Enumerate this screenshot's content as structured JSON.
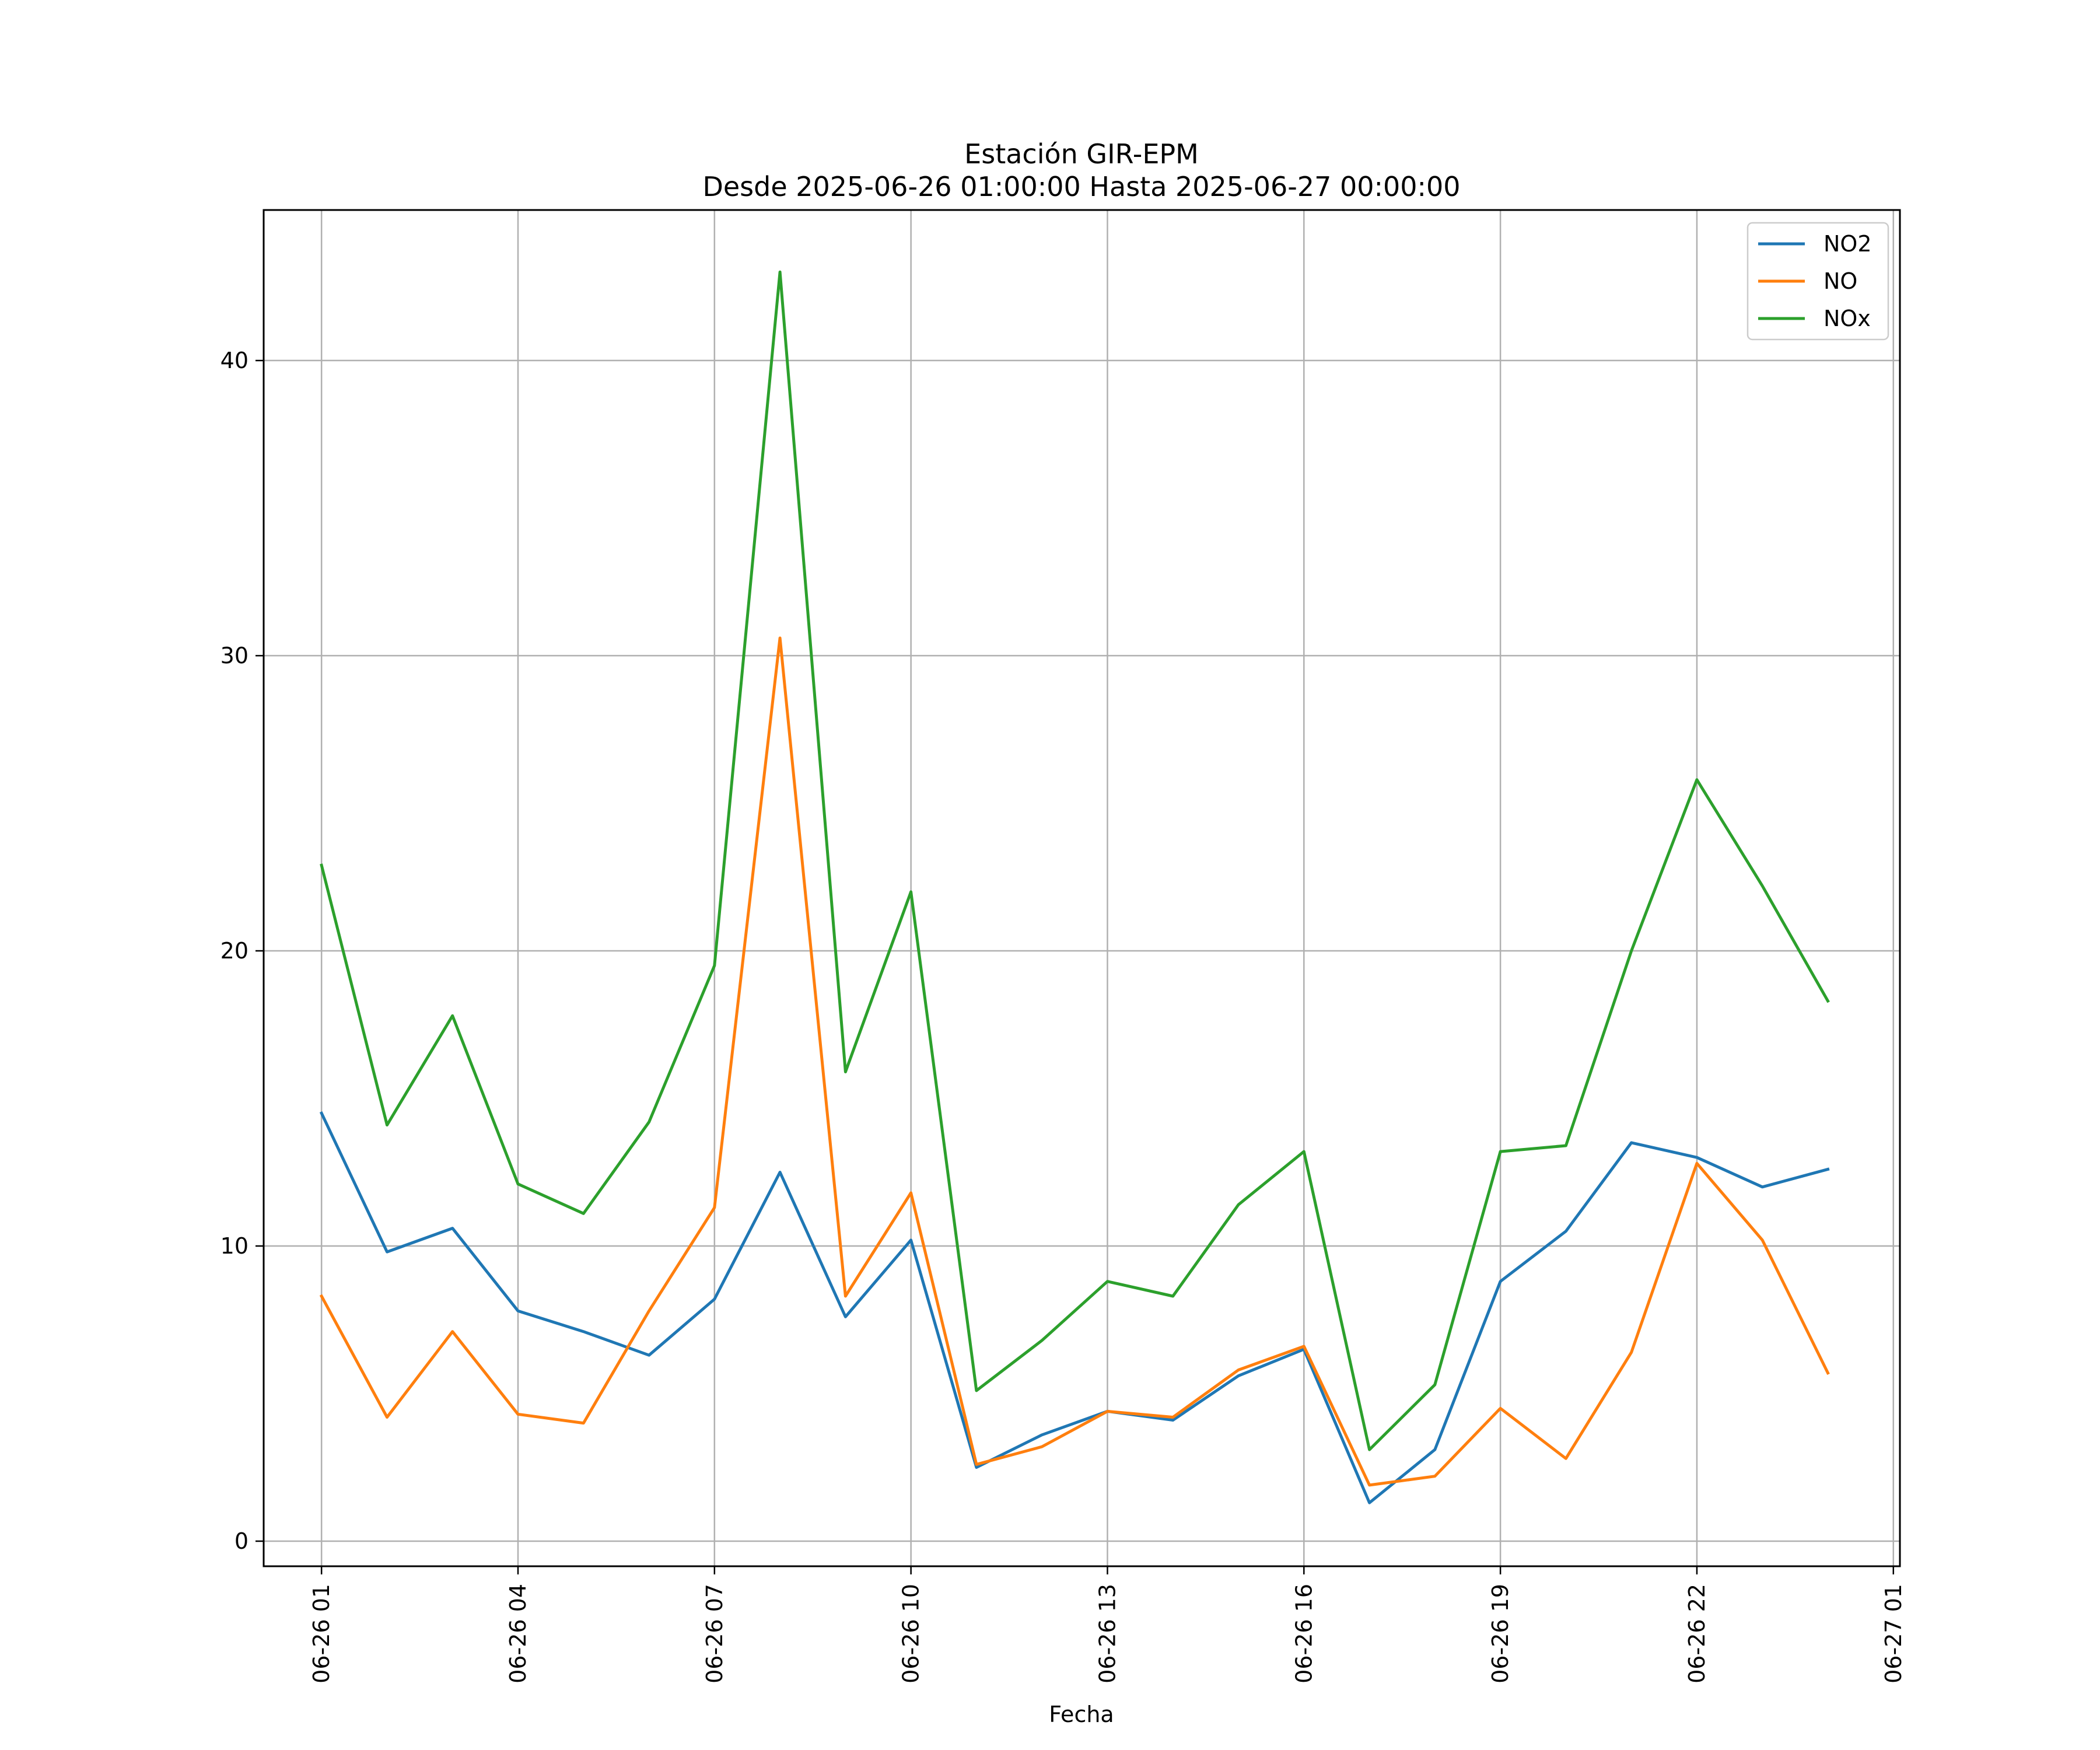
{
  "chart_data": {
    "type": "line",
    "title": "Estación GIR-EPM",
    "subtitle": "Desde 2025-06-26 01:00:00 Hasta 2025-06-27 00:00:00",
    "xlabel": "Fecha",
    "ylabel": "",
    "x": [
      "2025-06-26 01:00",
      "2025-06-26 02:00",
      "2025-06-26 03:00",
      "2025-06-26 04:00",
      "2025-06-26 05:00",
      "2025-06-26 06:00",
      "2025-06-26 07:00",
      "2025-06-26 08:00",
      "2025-06-26 09:00",
      "2025-06-26 10:00",
      "2025-06-26 11:00",
      "2025-06-26 12:00",
      "2025-06-26 13:00",
      "2025-06-26 14:00",
      "2025-06-26 15:00",
      "2025-06-26 16:00",
      "2025-06-26 17:00",
      "2025-06-26 18:00",
      "2025-06-26 19:00",
      "2025-06-26 20:00",
      "2025-06-26 21:00",
      "2025-06-26 22:00",
      "2025-06-26 23:00",
      "2025-06-27 00:00"
    ],
    "x_ticks": [
      "06-26 01",
      "06-26 04",
      "06-26 07",
      "06-26 10",
      "06-26 13",
      "06-26 16",
      "06-26 19",
      "06-26 22",
      "06-27 01"
    ],
    "x_tick_values": [
      "2025-06-26 01:00",
      "2025-06-26 04:00",
      "2025-06-26 07:00",
      "2025-06-26 10:00",
      "2025-06-26 13:00",
      "2025-06-26 16:00",
      "2025-06-26 19:00",
      "2025-06-26 22:00",
      "2025-06-27 01:00"
    ],
    "xlim": [
      "2025-06-26 00:07",
      "2025-06-27 01:06"
    ],
    "y_ticks": [
      0,
      10,
      20,
      30,
      40
    ],
    "ylim": [
      -0.85,
      45.1
    ],
    "grid": true,
    "legend_position": "upper-right",
    "series": [
      {
        "name": "NO2",
        "color": "#1f77b4",
        "values": [
          14.5,
          9.8,
          10.6,
          7.8,
          7.1,
          6.3,
          8.2,
          12.5,
          7.6,
          10.2,
          2.5,
          3.6,
          4.4,
          4.1,
          5.6,
          6.5,
          1.3,
          3.1,
          8.8,
          10.5,
          13.5,
          13.0,
          12.0,
          12.6
        ]
      },
      {
        "name": "NO",
        "color": "#ff7f0e",
        "values": [
          8.3,
          4.2,
          7.1,
          4.3,
          4.0,
          7.8,
          11.3,
          30.6,
          8.3,
          11.8,
          2.6,
          3.2,
          4.4,
          4.2,
          5.8,
          6.6,
          1.9,
          2.2,
          4.5,
          2.8,
          6.4,
          12.8,
          10.2,
          5.7
        ]
      },
      {
        "name": "NOx",
        "color": "#2ca02c",
        "values": [
          22.9,
          14.1,
          17.8,
          12.1,
          11.1,
          14.2,
          19.5,
          43.0,
          15.9,
          22.0,
          5.1,
          6.8,
          8.8,
          8.3,
          11.4,
          13.2,
          3.1,
          5.3,
          13.2,
          13.4,
          20.0,
          25.8,
          22.2,
          18.3
        ]
      }
    ]
  }
}
